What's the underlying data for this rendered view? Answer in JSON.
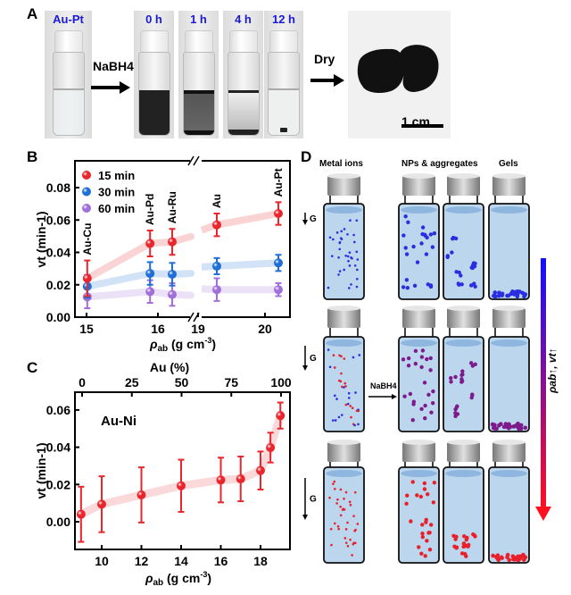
{
  "panels": {
    "A": {
      "label": "A",
      "start_label": "Au-Pt",
      "reagent_label": "NaBH4",
      "time_labels": [
        "0 h",
        "1 h",
        "4 h",
        "12 h"
      ],
      "dry_label": "Dry",
      "scale_bar_label": "1 cm"
    },
    "B": {
      "label": "B"
    },
    "C": {
      "label": "C"
    },
    "D": {
      "label": "D",
      "column_headers": [
        "Metal ions",
        "NPs & aggregates",
        "Gels"
      ],
      "gravity_label": "G",
      "reagent_label": "NaBH4",
      "trend_label": "ρab↑, vt↑",
      "colors": {
        "row1": "#2a2ee0",
        "row2": "#7d1a8c",
        "row3": "#e8202a",
        "liquid": "#bcd6ee",
        "gradient_top": "#1010ff",
        "gradient_bottom": "#ff1020"
      }
    }
  },
  "chart_data": [
    {
      "type": "scatter",
      "panel": "B",
      "xlabel": "ρab (g cm-3)",
      "ylabel": "vt (min-1)",
      "x_broken_axis": true,
      "x_segments": [
        [
          14.83,
          16.68
        ],
        [
          18.95,
          20.37
        ]
      ],
      "x_ticks": [
        15,
        16,
        19,
        20
      ],
      "ylim": [
        0,
        0.096
      ],
      "y_ticks": [
        "0.00",
        "0.02",
        "0.04",
        "0.06",
        "0.08"
      ],
      "legend_position": "top-left",
      "categories": [
        "Au-Cu",
        "Au-Pd",
        "Au-Ru",
        "Au",
        "Au-Pt"
      ],
      "x": [
        15.01,
        15.89,
        16.2,
        19.28,
        20.2
      ],
      "series": [
        {
          "name": "15 min",
          "color": "#e8262c",
          "values": [
            0.024,
            0.0455,
            0.0465,
            0.057,
            0.064
          ],
          "errors": [
            0.011,
            0.008,
            0.008,
            0.007,
            0.007
          ]
        },
        {
          "name": "30 min",
          "color": "#1f6fd6",
          "values": [
            0.019,
            0.027,
            0.0265,
            0.0315,
            0.0335
          ],
          "errors": [
            0.007,
            0.007,
            0.007,
            0.005,
            0.005
          ]
        },
        {
          "name": "60 min",
          "color": "#a070d8",
          "values": [
            0.0125,
            0.0158,
            0.014,
            0.017,
            0.017
          ],
          "errors": [
            0.007,
            0.007,
            0.007,
            0.007,
            0.004
          ]
        }
      ]
    },
    {
      "type": "scatter",
      "panel": "C",
      "annotation": "Au-Ni",
      "xlabel": "ρab (g cm-3)",
      "ylabel": "vt (min-1)",
      "top_xlabel": "Au (%)",
      "top_x_ticks": [
        "0",
        "25",
        "50",
        "75",
        "100"
      ],
      "xlim": [
        8.65,
        19.48
      ],
      "x_ticks": [
        10,
        12,
        14,
        16,
        18
      ],
      "ylim": [
        -0.015,
        0.067
      ],
      "y_ticks": [
        "0.00",
        "0.02",
        "0.04",
        "0.06"
      ],
      "series": [
        {
          "color": "#e8262c",
          "x": [
            8.96,
            10.0,
            12.0,
            14.0,
            16.0,
            17.0,
            18.0,
            18.5,
            19.0
          ],
          "values": [
            0.004,
            0.0094,
            0.0144,
            0.0193,
            0.0224,
            0.023,
            0.0275,
            0.0398,
            0.057
          ],
          "errors": [
            0.0148,
            0.015,
            0.0148,
            0.014,
            0.012,
            0.012,
            0.0102,
            0.008,
            0.007
          ]
        }
      ]
    }
  ]
}
